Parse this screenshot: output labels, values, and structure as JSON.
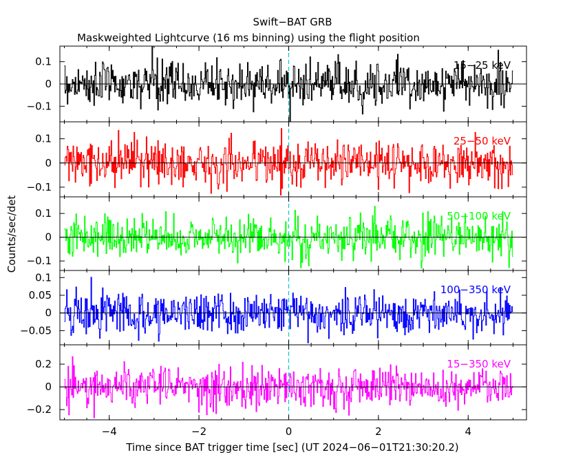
{
  "title": "Swift−BAT GRB",
  "subtitle": "Maskweighted Lightcurve (16 ms binning) using the flight position",
  "xlabel": "Time since BAT trigger time [sec] (UT 2024−06−01T21:30:20.2)",
  "ylabel": "Counts/sec/det",
  "x_tick_labels": [
    "−4",
    "−2",
    "0",
    "2",
    "4"
  ],
  "chart_data": {
    "type": "line",
    "x_range": [
      -5.1,
      5.3
    ],
    "bin_size_s": 0.016,
    "x_start": -5.0,
    "x_end": 5.0,
    "trigger_time": 0,
    "panels": [
      {
        "band": "15−25 keV",
        "color": "#000000",
        "ylim": [
          -0.17,
          0.17
        ],
        "yticks": [
          -0.1,
          0,
          0.1
        ],
        "ytick_labels": [
          "−0.1",
          "0",
          "0.1"
        ],
        "noise_sigma": 0.05
      },
      {
        "band": "25−50 keV",
        "color": "#ff0000",
        "ylim": [
          -0.14,
          0.17
        ],
        "yticks": [
          -0.1,
          0,
          0.1
        ],
        "ytick_labels": [
          "−0.1",
          "0",
          "0.1"
        ],
        "noise_sigma": 0.045
      },
      {
        "band": "50−100 keV",
        "color": "#00ff00",
        "ylim": [
          -0.14,
          0.17
        ],
        "yticks": [
          -0.1,
          0,
          0.1
        ],
        "ytick_labels": [
          "−0.1",
          "0",
          "0.1"
        ],
        "noise_sigma": 0.045
      },
      {
        "band": "100−350 keV",
        "color": "#0000ff",
        "ylim": [
          -0.09,
          0.12
        ],
        "yticks": [
          -0.05,
          0,
          0.05,
          0.1
        ],
        "ytick_labels": [
          "−0.05",
          "0",
          "0.05",
          "0.1"
        ],
        "noise_sigma": 0.03
      },
      {
        "band": "15−350 keV",
        "color": "#ff00ff",
        "ylim": [
          -0.29,
          0.37
        ],
        "yticks": [
          -0.2,
          0,
          0.2
        ],
        "ytick_labels": [
          "−0.2",
          "0",
          "0.2"
        ],
        "noise_sigma": 0.09
      }
    ]
  }
}
